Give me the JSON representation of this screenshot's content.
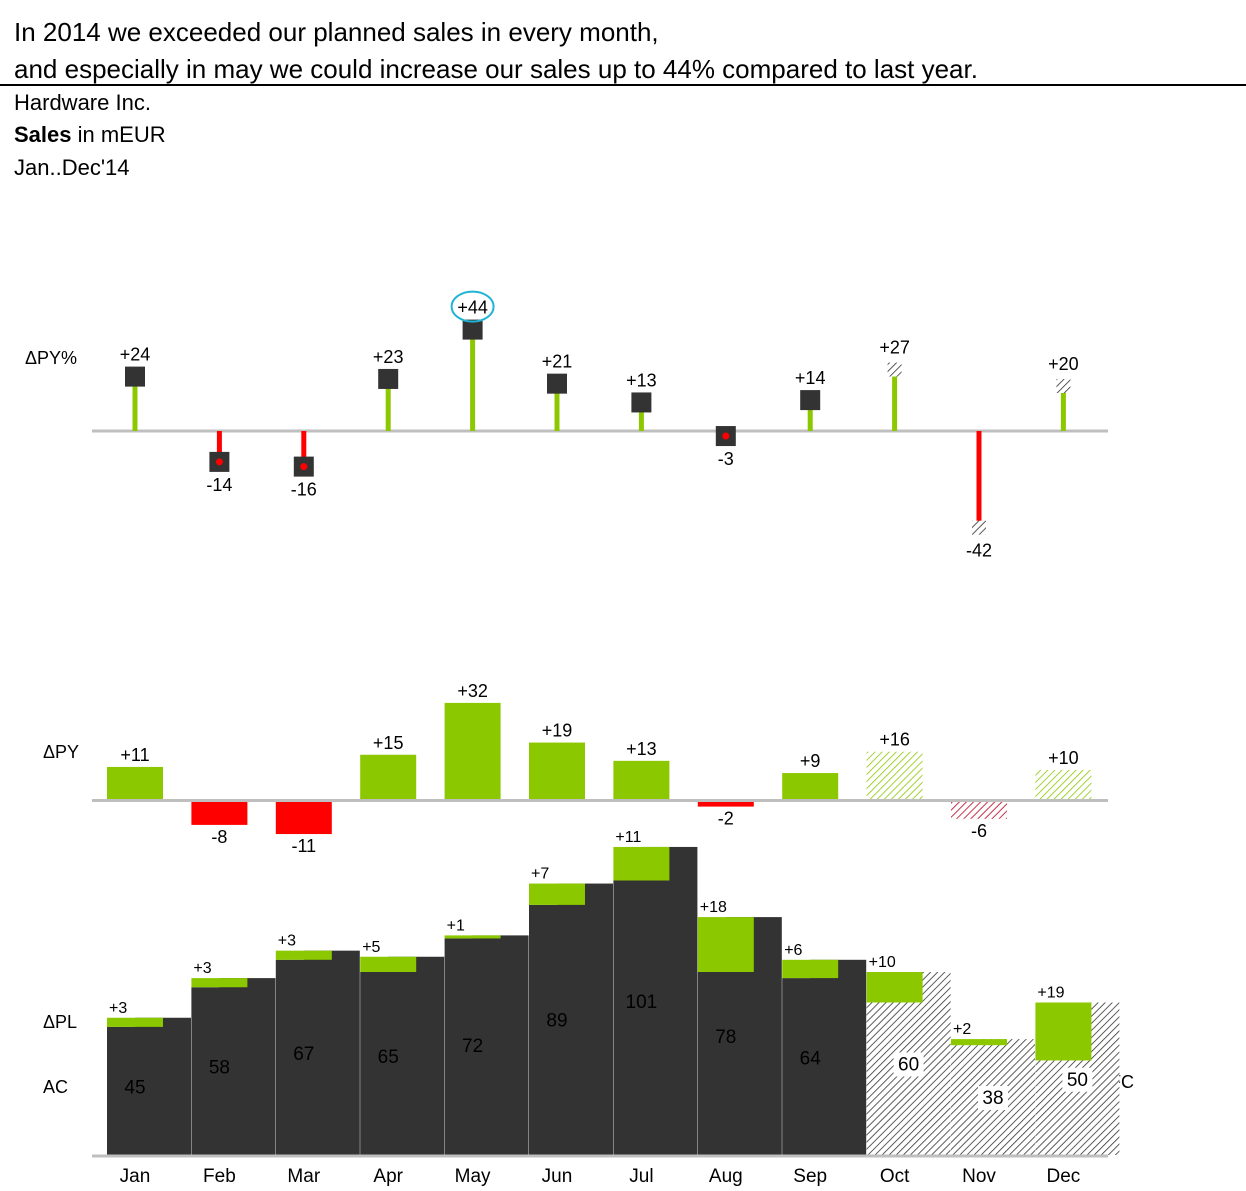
{
  "header": {
    "headline_line1": "In 2014 we exceeded our planned sales in every month,",
    "headline_line2": "and especially in may we could increase our sales up to 44% compared to last year.",
    "company": "Hardware Inc.",
    "measure_bold": "Sales",
    "measure_rest": " in mEUR",
    "period": "Jan..Dec'14"
  },
  "colors": {
    "ac": "#333333",
    "positive": "#8cc800",
    "negative": "#ff0000",
    "axis": "#bfbfbf",
    "highlight": "#1fb4d6"
  },
  "chart_data": {
    "type": "bar",
    "categories": [
      "Jan",
      "Feb",
      "Mar",
      "Apr",
      "May",
      "Jun",
      "Jul",
      "Aug",
      "Sep",
      "Oct",
      "Nov",
      "Dec"
    ],
    "forecast_from_index": 9,
    "highlight_category": "May",
    "row_labels": {
      "dpy_pct": "ΔPY%",
      "dpy": "ΔPY",
      "dpl": "ΔPL",
      "ac": "AC",
      "fc": "FC"
    },
    "series": [
      {
        "name": "ΔPY%",
        "values": [
          24,
          -14,
          -16,
          23,
          44,
          21,
          13,
          -3,
          14,
          27,
          -42,
          20
        ],
        "labels": [
          "+24",
          "-14",
          "-16",
          "+23",
          "+44",
          "+21",
          "+13",
          "-3",
          "+14",
          "+27",
          "-42",
          "+20"
        ]
      },
      {
        "name": "ΔPY",
        "values": [
          11,
          -8,
          -11,
          15,
          32,
          19,
          13,
          -2,
          9,
          16,
          -6,
          10
        ],
        "labels": [
          "+11",
          "-8",
          "-11",
          "+15",
          "+32",
          "+19",
          "+13",
          "-2",
          "+9",
          "+16",
          "-6",
          "+10"
        ]
      },
      {
        "name": "ΔPL",
        "values": [
          3,
          3,
          3,
          5,
          1,
          7,
          11,
          18,
          6,
          10,
          2,
          19
        ],
        "labels": [
          "+3",
          "+3",
          "+3",
          "+5",
          "+1",
          "+7",
          "+11",
          "+18",
          "+6",
          "+10",
          "+2",
          "+19"
        ]
      },
      {
        "name": "AC",
        "values": [
          45,
          58,
          67,
          65,
          72,
          89,
          101,
          78,
          64,
          60,
          38,
          50
        ],
        "labels": [
          "45",
          "58",
          "67",
          "65",
          "72",
          "89",
          "101",
          "78",
          "64",
          "60",
          "38",
          "50"
        ]
      }
    ]
  }
}
